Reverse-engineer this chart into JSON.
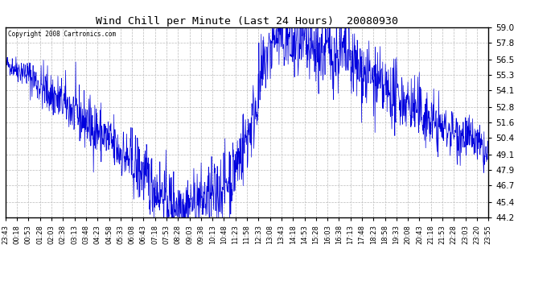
{
  "title": "Wind Chill per Minute (Last 24 Hours)  20080930",
  "copyright": "Copyright 2008 Cartronics.com",
  "line_color": "#0000dd",
  "background_color": "#ffffff",
  "grid_color": "#bbbbbb",
  "yticks": [
    44.2,
    45.4,
    46.7,
    47.9,
    49.1,
    50.4,
    51.6,
    52.8,
    54.1,
    55.3,
    56.5,
    57.8,
    59.0
  ],
  "ylim": [
    44.2,
    59.0
  ],
  "x_labels": [
    "23:43",
    "00:18",
    "00:53",
    "01:28",
    "02:03",
    "02:38",
    "03:13",
    "03:48",
    "04:23",
    "04:58",
    "05:33",
    "06:08",
    "06:43",
    "07:18",
    "07:53",
    "08:28",
    "09:03",
    "09:38",
    "10:13",
    "10:48",
    "11:23",
    "11:58",
    "12:33",
    "13:08",
    "13:43",
    "14:18",
    "14:53",
    "15:28",
    "16:03",
    "16:38",
    "17:13",
    "17:48",
    "18:23",
    "18:58",
    "19:33",
    "20:08",
    "20:43",
    "21:18",
    "21:53",
    "22:28",
    "23:03",
    "23:20",
    "23:55"
  ],
  "num_points": 1440,
  "key_t": [
    0.0,
    0.01,
    0.04,
    0.08,
    0.13,
    0.19,
    0.24,
    0.28,
    0.31,
    0.34,
    0.38,
    0.43,
    0.47,
    0.51,
    0.535,
    0.56,
    0.6,
    0.63,
    0.66,
    0.7,
    0.74,
    0.78,
    0.83,
    0.87,
    0.9,
    0.92,
    0.95,
    0.97,
    1.0
  ],
  "key_v": [
    56.2,
    56.0,
    55.5,
    54.2,
    52.8,
    51.0,
    49.2,
    47.8,
    46.5,
    45.5,
    45.2,
    45.8,
    47.5,
    51.5,
    56.0,
    58.5,
    57.5,
    57.0,
    57.2,
    56.8,
    55.5,
    54.2,
    53.2,
    52.0,
    51.2,
    51.0,
    50.5,
    50.2,
    48.8
  ],
  "noise_amp": [
    0.3,
    0.4,
    0.6,
    0.9,
    1.0,
    1.1,
    1.2,
    1.3,
    1.2,
    1.2,
    1.3,
    1.3,
    1.4,
    1.5,
    1.3,
    1.5,
    1.6,
    1.5,
    1.5,
    1.5,
    1.4,
    1.3,
    1.2,
    1.2,
    1.1,
    1.0,
    0.9,
    0.8,
    0.8
  ]
}
